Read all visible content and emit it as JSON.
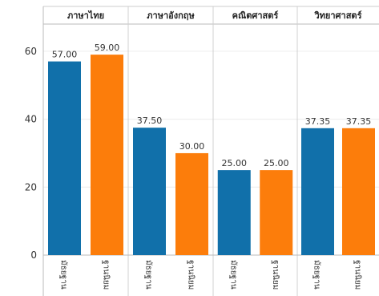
{
  "chart_data": {
    "type": "bar",
    "panels": [
      {
        "title": "ภาษาไทย",
        "categories": [
          "มัธยฐาน",
          "ฐานนิยม"
        ],
        "values": [
          57.0,
          59.0
        ],
        "labels": [
          "57.00",
          "59.00"
        ]
      },
      {
        "title": "ภาษาอังกฤษ",
        "categories": [
          "มัธยฐาน",
          "ฐานนิยม"
        ],
        "values": [
          37.5,
          30.0
        ],
        "labels": [
          "37.50",
          "30.00"
        ]
      },
      {
        "title": "คณิตศาสตร์",
        "categories": [
          "มัธยฐาน",
          "ฐานนิยม"
        ],
        "values": [
          25.0,
          25.0
        ],
        "labels": [
          "25.00",
          "25.00"
        ]
      },
      {
        "title": "วิทยาศาสตร์",
        "categories": [
          "มัธยฐาน",
          "ฐานนิยม"
        ],
        "values": [
          37.35,
          37.35
        ],
        "labels": [
          "37.35",
          "37.35"
        ]
      }
    ],
    "yticks": [
      0,
      20,
      40,
      60
    ],
    "ylim": [
      0,
      68
    ],
    "bar_colors": [
      "#1170aa",
      "#fc7d0b"
    ],
    "grid": true,
    "legend": "none"
  }
}
